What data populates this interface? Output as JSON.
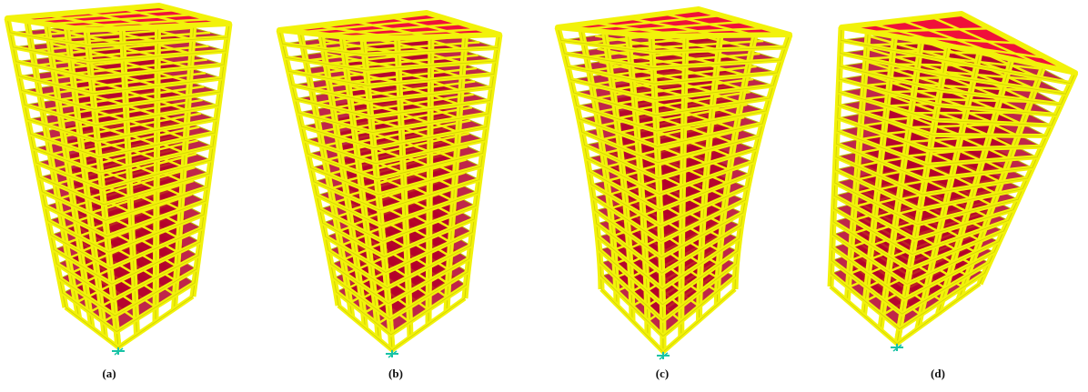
{
  "figure": {
    "panels": [
      {
        "label": "(a)",
        "mode": "twist"
      },
      {
        "label": "(b)",
        "mode": "sway"
      },
      {
        "label": "(c)",
        "mode": "bend"
      },
      {
        "label": "(d)",
        "mode": "lean"
      }
    ],
    "colors": {
      "frame": "#f2f20a",
      "frame_dark": "#bcbc00",
      "slab": "#f0103a",
      "slab_dark": "#b4002a",
      "support": "#18c3a6"
    }
  }
}
